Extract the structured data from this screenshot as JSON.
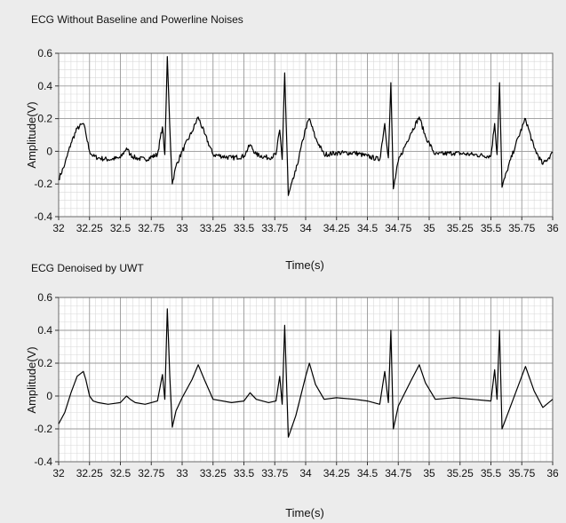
{
  "chart_data": [
    {
      "type": "line",
      "title": "ECG Without Baseline and Powerline Noises",
      "xlabel": "Time(s)",
      "ylabel": "Amplitude(V)",
      "xlim": [
        32,
        36
      ],
      "ylim": [
        -0.4,
        0.6
      ],
      "grid": true,
      "x_ticks": [
        "32",
        "32.25",
        "32.5",
        "32.75",
        "33",
        "33.25",
        "33.5",
        "33.75",
        "34",
        "34.25",
        "34.5",
        "34.75",
        "35",
        "35.25",
        "35.5",
        "35.75",
        "36"
      ],
      "y_ticks": [
        "0.6",
        "0.4",
        "0.2",
        "0",
        "-0.2",
        "-0.4"
      ],
      "noisy": true,
      "series": [
        {
          "x": [
            32.0,
            32.05,
            32.1,
            32.15,
            32.2,
            32.22,
            32.25,
            32.28,
            32.32,
            32.4,
            32.5,
            32.55,
            32.58,
            32.62,
            32.7,
            32.8,
            32.84,
            32.86,
            32.88,
            32.9,
            32.92,
            32.95,
            33.0,
            33.08,
            33.13,
            33.18,
            33.25,
            33.4,
            33.5,
            33.55,
            33.6,
            33.7,
            33.76,
            33.79,
            33.81,
            33.83,
            33.86,
            33.92,
            34.0,
            34.03,
            34.08,
            34.15,
            34.25,
            34.4,
            34.5,
            34.6,
            34.64,
            34.67,
            34.69,
            34.71,
            34.75,
            34.85,
            34.92,
            34.97,
            35.05,
            35.2,
            35.35,
            35.5,
            35.53,
            35.55,
            35.57,
            35.59,
            35.63,
            35.7,
            35.78,
            35.85,
            35.92,
            36.0
          ],
          "y": [
            -0.17,
            -0.08,
            0.05,
            0.14,
            0.17,
            0.11,
            0.0,
            -0.03,
            -0.04,
            -0.05,
            -0.04,
            0.02,
            -0.02,
            -0.04,
            -0.05,
            -0.02,
            0.15,
            -0.02,
            0.58,
            0.15,
            -0.2,
            -0.09,
            0.0,
            0.12,
            0.21,
            0.11,
            -0.02,
            -0.04,
            -0.03,
            0.04,
            -0.02,
            -0.04,
            -0.02,
            0.13,
            -0.05,
            0.48,
            -0.27,
            -0.12,
            0.14,
            0.2,
            0.08,
            -0.02,
            -0.01,
            -0.01,
            -0.03,
            -0.05,
            0.17,
            -0.04,
            0.42,
            -0.23,
            -0.06,
            0.11,
            0.21,
            0.09,
            -0.02,
            -0.01,
            -0.02,
            -0.03,
            0.17,
            -0.02,
            0.42,
            -0.22,
            -0.12,
            0.04,
            0.2,
            0.02,
            -0.08,
            -0.01
          ]
        }
      ]
    },
    {
      "type": "line",
      "title": "ECG Denoised by UWT",
      "xlabel": "Time(s)",
      "ylabel": "Amplitude(V)",
      "xlim": [
        32,
        36
      ],
      "ylim": [
        -0.4,
        0.6
      ],
      "grid": true,
      "x_ticks": [
        "32",
        "32.25",
        "32.5",
        "32.75",
        "33",
        "33.25",
        "33.5",
        "33.75",
        "34",
        "34.25",
        "34.5",
        "34.75",
        "35",
        "35.25",
        "35.5",
        "35.75",
        "36"
      ],
      "y_ticks": [
        "0.6",
        "0.4",
        "0.2",
        "0",
        "-0.2",
        "-0.4"
      ],
      "noisy": false,
      "series": [
        {
          "x": [
            32.0,
            32.05,
            32.1,
            32.15,
            32.2,
            32.22,
            32.25,
            32.28,
            32.32,
            32.4,
            32.5,
            32.55,
            32.58,
            32.62,
            32.7,
            32.8,
            32.84,
            32.86,
            32.88,
            32.9,
            32.92,
            32.95,
            33.0,
            33.08,
            33.13,
            33.18,
            33.25,
            33.4,
            33.5,
            33.55,
            33.6,
            33.7,
            33.76,
            33.79,
            33.81,
            33.83,
            33.86,
            33.92,
            34.0,
            34.03,
            34.08,
            34.15,
            34.25,
            34.4,
            34.5,
            34.6,
            34.64,
            34.67,
            34.69,
            34.71,
            34.75,
            34.85,
            34.92,
            34.97,
            35.05,
            35.2,
            35.35,
            35.5,
            35.53,
            35.55,
            35.57,
            35.59,
            35.63,
            35.7,
            35.78,
            35.85,
            35.92,
            36.0
          ],
          "y": [
            -0.17,
            -0.1,
            0.02,
            0.12,
            0.15,
            0.1,
            0.0,
            -0.03,
            -0.04,
            -0.05,
            -0.04,
            0.0,
            -0.02,
            -0.04,
            -0.05,
            -0.03,
            0.13,
            -0.02,
            0.53,
            0.12,
            -0.19,
            -0.09,
            -0.01,
            0.1,
            0.19,
            0.1,
            -0.02,
            -0.04,
            -0.03,
            0.02,
            -0.02,
            -0.04,
            -0.03,
            0.12,
            -0.05,
            0.43,
            -0.25,
            -0.12,
            0.12,
            0.2,
            0.07,
            -0.02,
            -0.01,
            -0.02,
            -0.03,
            -0.05,
            0.15,
            -0.04,
            0.4,
            -0.2,
            -0.06,
            0.09,
            0.19,
            0.08,
            -0.02,
            -0.01,
            -0.02,
            -0.03,
            0.16,
            -0.02,
            0.4,
            -0.2,
            -0.12,
            0.02,
            0.18,
            0.03,
            -0.07,
            -0.02
          ]
        }
      ]
    }
  ]
}
